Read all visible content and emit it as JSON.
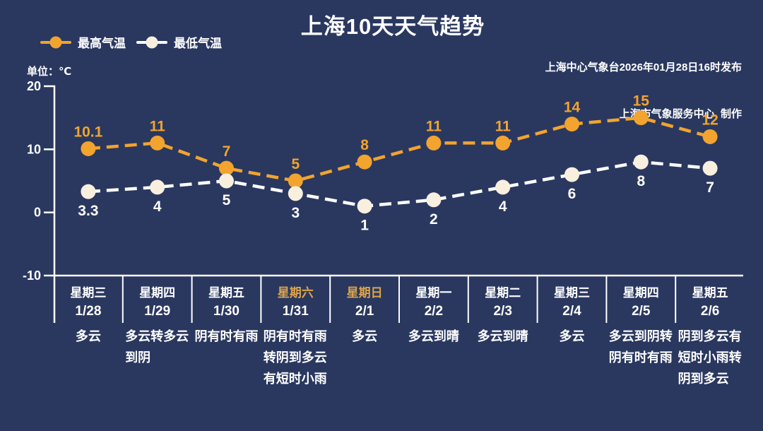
{
  "title": "上海10天天气趋势",
  "attribution": {
    "line1": "上海中心气象台2026年01月28日16时发布",
    "line2": "上海市气象服务中心  制作"
  },
  "unit_label": "单位：℃",
  "legend": [
    {
      "label": "最高气温",
      "line_color": "#f2a42e",
      "marker_color": "#f2a42e"
    },
    {
      "label": "最低气温",
      "line_color": "#ffffff",
      "marker_color": "#f8efde"
    }
  ],
  "colors": {
    "background": "#2a3860",
    "high_series": "#f2a42e",
    "low_line": "#ffffff",
    "low_marker": "#f8efde",
    "axis": "#ffffff",
    "text": "#ffffff",
    "weekend_day": "#dca44c"
  },
  "chart_data": {
    "type": "line",
    "title": "上海10天天气趋势",
    "ylabel": "单位：℃",
    "ylim": [
      -10,
      20
    ],
    "yticks": [
      20,
      10,
      0,
      -10
    ],
    "grid": false,
    "legend_position": "top-left",
    "line_style": "dashed",
    "series": [
      {
        "name": "最高气温",
        "color": "#f2a42e",
        "marker_color": "#f2a42e",
        "label_color": "#f2a42e",
        "values": [
          10.1,
          11,
          7,
          5,
          8,
          11,
          11,
          14,
          15,
          12
        ]
      },
      {
        "name": "最低气温",
        "color": "#ffffff",
        "marker_color": "#f8efde",
        "label_color": "#ffffff",
        "values": [
          3.3,
          4,
          5,
          3,
          1,
          2,
          4,
          6,
          8,
          7
        ]
      }
    ],
    "categories": [
      {
        "day": "星期三",
        "date": "1/28",
        "weather": "多云",
        "weekend": false
      },
      {
        "day": "星期四",
        "date": "1/29",
        "weather": "多云转多云到阴",
        "weekend": false
      },
      {
        "day": "星期五",
        "date": "1/30",
        "weather": "阴有时有雨",
        "weekend": false
      },
      {
        "day": "星期六",
        "date": "1/31",
        "weather": "阴有时有雨转阴到多云有短时小雨",
        "weekend": true
      },
      {
        "day": "星期日",
        "date": "2/1",
        "weather": "多云",
        "weekend": true
      },
      {
        "day": "星期一",
        "date": "2/2",
        "weather": "多云到晴",
        "weekend": false
      },
      {
        "day": "星期二",
        "date": "2/3",
        "weather": "多云到晴",
        "weekend": false
      },
      {
        "day": "星期三",
        "date": "2/4",
        "weather": "多云",
        "weekend": false
      },
      {
        "day": "星期四",
        "date": "2/5",
        "weather": "多云到阴转阴有时有雨",
        "weekend": false
      },
      {
        "day": "星期五",
        "date": "2/6",
        "weather": "阴到多云有短时小雨转阴到多云",
        "weekend": false
      }
    ]
  }
}
